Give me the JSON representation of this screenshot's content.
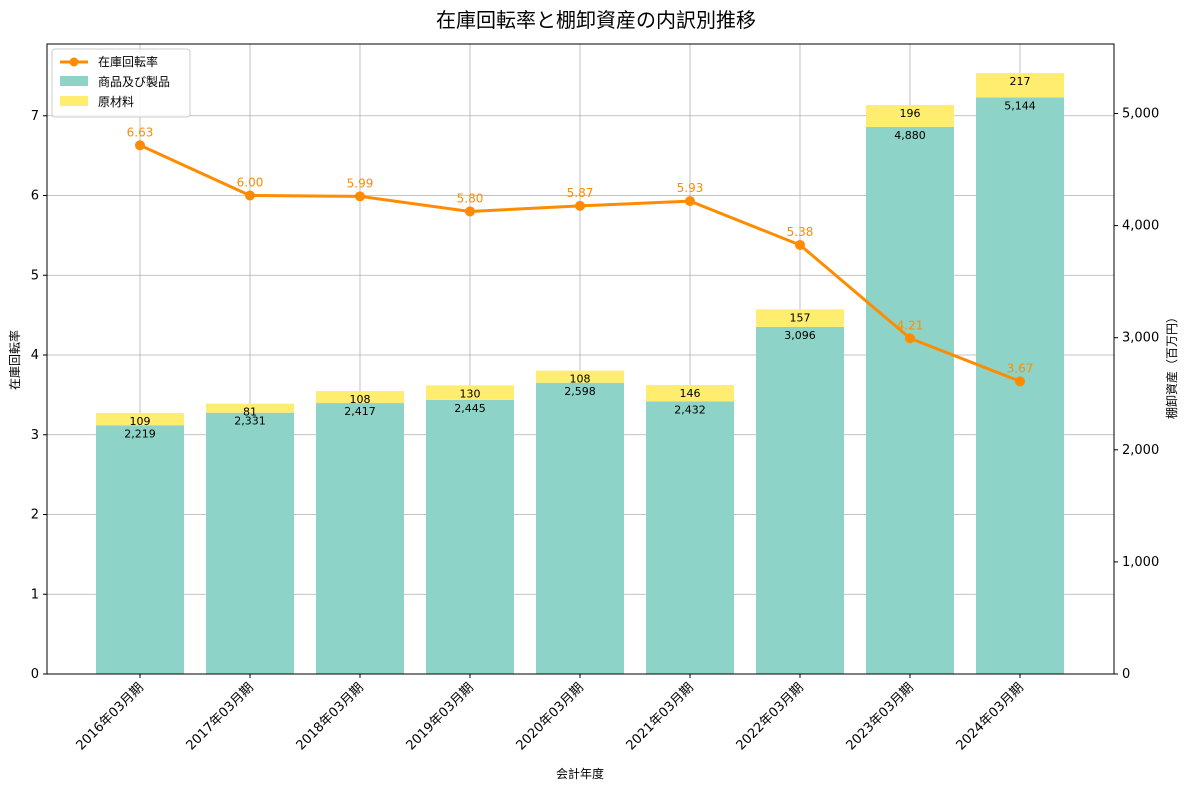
{
  "chart_data": {
    "type": "bar",
    "title": "在庫回転率と棚卸資産の内訳別推移",
    "xlabel": "会計年度",
    "ylabel_left": "在庫回転率",
    "ylabel_right": "棚卸資産（百万円）",
    "categories": [
      "2016年03月期",
      "2017年03月期",
      "2018年03月期",
      "2019年03月期",
      "2020年03月期",
      "2021年03月期",
      "2022年03月期",
      "2023年03月期",
      "2024年03月期"
    ],
    "series": [
      {
        "name": "商品及び製品",
        "kind": "stacked-bar",
        "axis": "right",
        "color": "#8dd3c7",
        "values": [
          2219,
          2331,
          2417,
          2445,
          2598,
          2432,
          3096,
          4880,
          5144
        ],
        "labels": [
          "2,219",
          "2,331",
          "2,417",
          "2,445",
          "2,598",
          "2,432",
          "3,096",
          "4,880",
          "5,144"
        ]
      },
      {
        "name": "原材料",
        "kind": "stacked-bar",
        "axis": "right",
        "color": "#ffed6f",
        "values": [
          109,
          81,
          108,
          130,
          108,
          146,
          157,
          196,
          217
        ],
        "labels": [
          "109",
          "81",
          "108",
          "130",
          "108",
          "146",
          "157",
          "196",
          "217"
        ]
      },
      {
        "name": "在庫回転率",
        "kind": "line",
        "axis": "left",
        "color": "#ff8c00",
        "values": [
          6.63,
          6.0,
          5.99,
          5.8,
          5.87,
          5.93,
          5.38,
          4.21,
          3.67
        ],
        "labels": [
          "6.63",
          "6.00",
          "5.99",
          "5.80",
          "5.87",
          "5.93",
          "5.38",
          "4.21",
          "3.67"
        ]
      }
    ],
    "ylim_left": [
      0,
      7.9
    ],
    "yticks_left": [
      "0",
      "1",
      "2",
      "3",
      "4",
      "5",
      "6",
      "7"
    ],
    "ylim_right": [
      0,
      5620
    ],
    "yticks_right": [
      "0",
      "1,000",
      "2,000",
      "3,000",
      "4,000",
      "5,000"
    ],
    "grid": true,
    "legend": "upper-left",
    "legend_order": [
      "在庫回転率",
      "商品及び製品",
      "原材料"
    ]
  }
}
